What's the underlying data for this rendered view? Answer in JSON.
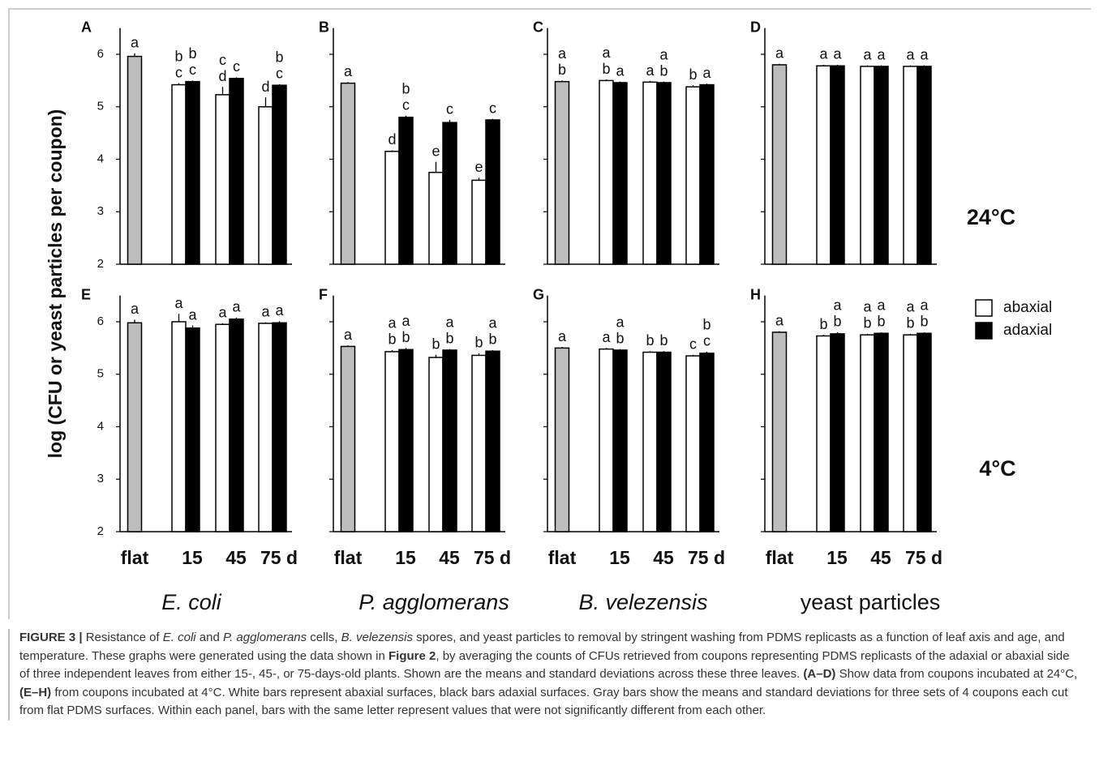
{
  "chart_data": [
    {
      "type": "bar",
      "panel": "A",
      "ylim": [
        2,
        6.5
      ],
      "yticks": [
        2,
        3,
        4,
        5,
        6
      ],
      "tick_labels": true,
      "series": [
        {
          "color": "#bdbdbd",
          "values": [
            5.96,
            null,
            null,
            null
          ],
          "errors": [
            0.06,
            null,
            null,
            null
          ],
          "letters": [
            [
              "a"
            ],
            null,
            null,
            null
          ]
        },
        {
          "name": "abaxial",
          "color": "#ffffff",
          "values": [
            null,
            5.42,
            5.23,
            5.0
          ],
          "errors": [
            null,
            0.03,
            0.15,
            0.18
          ],
          "letters": [
            null,
            [
              "b",
              "c"
            ],
            [
              "c",
              "d"
            ],
            [
              "d"
            ]
          ]
        },
        {
          "name": "adaxial",
          "color": "#000000",
          "values": [
            null,
            5.48,
            5.54,
            5.41
          ],
          "errors": [
            null,
            0.02,
            0.02,
            0.02
          ],
          "letters": [
            null,
            [
              "b",
              "c"
            ],
            [
              "c"
            ],
            [
              "b",
              "c"
            ]
          ]
        }
      ]
    },
    {
      "type": "bar",
      "panel": "B",
      "ylim": [
        2,
        6.5
      ],
      "yticks": [
        2,
        3,
        4,
        5,
        6
      ],
      "tick_labels": false,
      "series": [
        {
          "color": "#bdbdbd",
          "values": [
            5.45,
            null,
            null,
            null
          ],
          "errors": [
            0.02,
            null,
            null,
            null
          ],
          "letters": [
            [
              "a"
            ],
            null,
            null,
            null
          ]
        },
        {
          "name": "abaxial",
          "color": "#ffffff",
          "values": [
            null,
            4.15,
            3.75,
            3.6
          ],
          "errors": [
            null,
            0.02,
            0.2,
            0.05
          ],
          "letters": [
            null,
            [
              "d"
            ],
            [
              "e"
            ],
            [
              "e"
            ]
          ]
        },
        {
          "name": "adaxial",
          "color": "#000000",
          "values": [
            null,
            4.8,
            4.7,
            4.75
          ],
          "errors": [
            null,
            0.03,
            0.05,
            0.02
          ],
          "letters": [
            null,
            [
              "b",
              "c"
            ],
            [
              "c"
            ],
            [
              "c"
            ]
          ]
        }
      ]
    },
    {
      "type": "bar",
      "panel": "C",
      "ylim": [
        2,
        6.5
      ],
      "yticks": [
        2,
        3,
        4,
        5,
        6
      ],
      "tick_labels": false,
      "series": [
        {
          "color": "#bdbdbd",
          "values": [
            5.48,
            null,
            null,
            null
          ],
          "errors": [
            0.02,
            null,
            null,
            null
          ],
          "letters": [
            [
              "a",
              "b"
            ],
            null,
            null,
            null
          ]
        },
        {
          "name": "abaxial",
          "color": "#ffffff",
          "values": [
            null,
            5.5,
            5.47,
            5.38
          ],
          "errors": [
            null,
            0.02,
            0.02,
            0.03
          ],
          "letters": [
            null,
            [
              "a",
              "b"
            ],
            [
              "a"
            ],
            [
              "b"
            ]
          ]
        },
        {
          "name": "adaxial",
          "color": "#000000",
          "values": [
            null,
            5.46,
            5.46,
            5.42
          ],
          "errors": [
            null,
            0.02,
            0.02,
            0.02
          ],
          "letters": [
            null,
            [
              "a"
            ],
            [
              "a",
              "b"
            ],
            [
              "a"
            ]
          ]
        }
      ]
    },
    {
      "type": "bar",
      "panel": "D",
      "ylim": [
        2,
        6.5
      ],
      "yticks": [
        2,
        3,
        4,
        5,
        6
      ],
      "tick_labels": false,
      "series": [
        {
          "color": "#bdbdbd",
          "values": [
            5.8,
            null,
            null,
            null
          ],
          "errors": [
            0.02,
            null,
            null,
            null
          ],
          "letters": [
            [
              "a"
            ],
            null,
            null,
            null
          ]
        },
        {
          "name": "abaxial",
          "color": "#ffffff",
          "values": [
            null,
            5.78,
            5.77,
            5.77
          ],
          "errors": [
            null,
            0.02,
            0.02,
            0.02
          ],
          "letters": [
            null,
            [
              "a"
            ],
            [
              "a"
            ],
            [
              "a"
            ]
          ]
        },
        {
          "name": "adaxial",
          "color": "#000000",
          "values": [
            null,
            5.78,
            5.77,
            5.77
          ],
          "errors": [
            null,
            0.02,
            0.02,
            0.02
          ],
          "letters": [
            null,
            [
              "a"
            ],
            [
              "a"
            ],
            [
              "a"
            ]
          ]
        }
      ]
    },
    {
      "type": "bar",
      "panel": "E",
      "ylim": [
        2,
        6.5
      ],
      "yticks": [
        2,
        3,
        4,
        5,
        6
      ],
      "tick_labels": true,
      "categories": [
        "flat",
        "15",
        "45",
        "75 d"
      ],
      "series": [
        {
          "color": "#bdbdbd",
          "values": [
            5.98,
            null,
            null,
            null
          ],
          "errors": [
            0.06,
            null,
            null,
            null
          ],
          "letters": [
            [
              "a"
            ],
            null,
            null,
            null
          ]
        },
        {
          "name": "abaxial",
          "color": "#ffffff",
          "values": [
            null,
            6.0,
            5.95,
            5.97
          ],
          "errors": [
            null,
            0.15,
            0.02,
            0.02
          ],
          "letters": [
            null,
            [
              "a"
            ],
            [
              "a"
            ],
            [
              "a"
            ]
          ]
        },
        {
          "name": "adaxial",
          "color": "#000000",
          "values": [
            null,
            5.88,
            6.05,
            5.98
          ],
          "errors": [
            null,
            0.05,
            0.03,
            0.03
          ],
          "letters": [
            null,
            [
              "a"
            ],
            [
              "a"
            ],
            [
              "a"
            ]
          ]
        }
      ]
    },
    {
      "type": "bar",
      "panel": "F",
      "ylim": [
        2,
        6.5
      ],
      "yticks": [
        2,
        3,
        4,
        5,
        6
      ],
      "tick_labels": false,
      "categories": [
        "flat",
        "15",
        "45",
        "75 d"
      ],
      "series": [
        {
          "color": "#bdbdbd",
          "values": [
            5.53,
            null,
            null,
            null
          ],
          "errors": [
            0.02,
            null,
            null,
            null
          ],
          "letters": [
            [
              "a"
            ],
            null,
            null,
            null
          ]
        },
        {
          "name": "abaxial",
          "color": "#ffffff",
          "values": [
            null,
            5.43,
            5.32,
            5.36
          ],
          "errors": [
            null,
            0.03,
            0.05,
            0.04
          ],
          "letters": [
            null,
            [
              "a",
              "b"
            ],
            [
              "b"
            ],
            [
              "b"
            ]
          ]
        },
        {
          "name": "adaxial",
          "color": "#000000",
          "values": [
            null,
            5.47,
            5.46,
            5.44
          ],
          "errors": [
            null,
            0.03,
            0.02,
            0.02
          ],
          "letters": [
            null,
            [
              "a",
              "b"
            ],
            [
              "a",
              "b"
            ],
            [
              "a",
              "b"
            ]
          ]
        }
      ]
    },
    {
      "type": "bar",
      "panel": "G",
      "ylim": [
        2,
        6.5
      ],
      "yticks": [
        2,
        3,
        4,
        5,
        6
      ],
      "tick_labels": false,
      "categories": [
        "flat",
        "15",
        "45",
        "75 d"
      ],
      "series": [
        {
          "color": "#bdbdbd",
          "values": [
            5.5,
            null,
            null,
            null
          ],
          "errors": [
            0.02,
            null,
            null,
            null
          ],
          "letters": [
            [
              "a"
            ],
            null,
            null,
            null
          ]
        },
        {
          "name": "abaxial",
          "color": "#ffffff",
          "values": [
            null,
            5.48,
            5.42,
            5.35
          ],
          "errors": [
            null,
            0.02,
            0.02,
            0.02
          ],
          "letters": [
            null,
            [
              "a"
            ],
            [
              "b"
            ],
            [
              "c"
            ]
          ]
        },
        {
          "name": "adaxial",
          "color": "#000000",
          "values": [
            null,
            5.46,
            5.42,
            5.4
          ],
          "errors": [
            null,
            0.02,
            0.02,
            0.03
          ],
          "letters": [
            null,
            [
              "a",
              "b"
            ],
            [
              "b"
            ],
            [
              "b",
              "c"
            ]
          ]
        }
      ]
    },
    {
      "type": "bar",
      "panel": "H",
      "ylim": [
        2,
        6.5
      ],
      "yticks": [
        2,
        3,
        4,
        5,
        6
      ],
      "tick_labels": false,
      "categories": [
        "flat",
        "15",
        "45",
        "75 d"
      ],
      "series": [
        {
          "color": "#bdbdbd",
          "values": [
            5.8,
            null,
            null,
            null
          ],
          "errors": [
            0.02,
            null,
            null,
            null
          ],
          "letters": [
            [
              "a"
            ],
            null,
            null,
            null
          ]
        },
        {
          "name": "abaxial",
          "color": "#ffffff",
          "values": [
            null,
            5.73,
            5.75,
            5.75
          ],
          "errors": [
            null,
            0.02,
            0.02,
            0.02
          ],
          "letters": [
            null,
            [
              "b"
            ],
            [
              "a",
              "b"
            ],
            [
              "a",
              "b"
            ]
          ]
        },
        {
          "name": "adaxial",
          "color": "#000000",
          "values": [
            null,
            5.77,
            5.78,
            5.78
          ],
          "errors": [
            null,
            0.03,
            0.02,
            0.02
          ],
          "letters": [
            null,
            [
              "a",
              "b"
            ],
            [
              "a",
              "b"
            ],
            [
              "a",
              "b"
            ]
          ]
        }
      ]
    }
  ],
  "y_label": "log (CFU or yeast particles per coupon)",
  "temperatures": [
    "24°C",
    "4°C"
  ],
  "organisms": [
    "E. coli",
    "P. agglomerans",
    "B. velezensis",
    "yeast particles"
  ],
  "caption": [
    "FIGURE 3 |",
    " Resistance of ",
    "E. coli",
    " and ",
    "P. agglomerans",
    " cells, ",
    "B. velezensis",
    " spores, and yeast particles to removal by stringent washing from PDMS replicasts as a function of leaf axis and age, and temperature. These graphs were generated using the data shown in ",
    "Figure 2",
    ", by averaging the counts of CFUs retrieved from coupons representing PDMS replicasts of the adaxial or abaxial side of three independent leaves from either 15-, 45-, or 75-days-old plants. Shown are the means and standard deviations across these three leaves. ",
    "(A–D)",
    " Show data from coupons incubated at 24°C, ",
    "(E–H)",
    " from coupons incubated at 4°C. White bars represent abaxial surfaces, black bars adaxial surfaces. Gray bars show the means and standard deviations for three sets of 4 coupons each cut from flat PDMS surfaces. Within each panel, bars with the same letter represent values that were not significantly different from each other."
  ]
}
